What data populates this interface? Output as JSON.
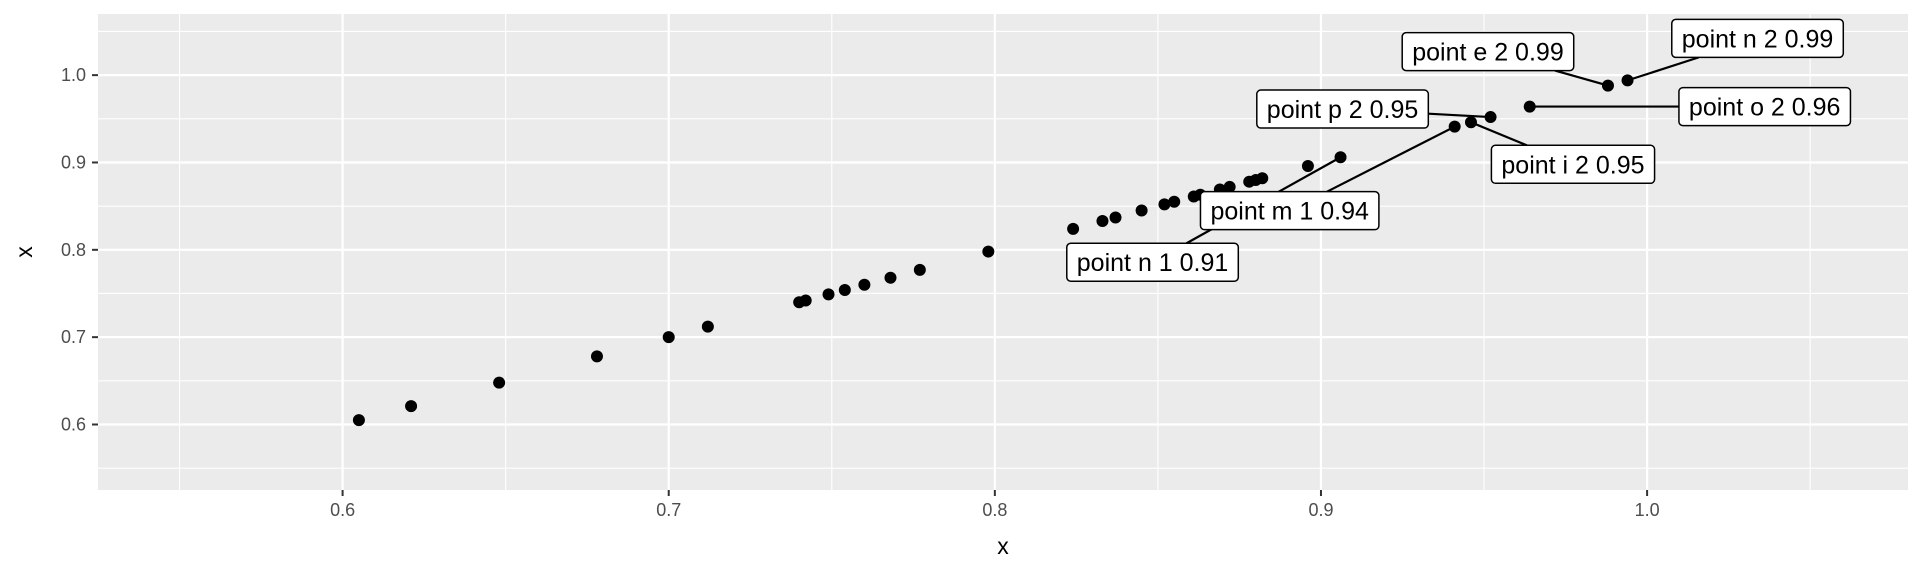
{
  "chart_data": {
    "type": "scatter",
    "title": "",
    "xlabel": "x",
    "ylabel": "x",
    "xlim": [
      0.525,
      1.08
    ],
    "ylim": [
      0.525,
      1.07
    ],
    "x_ticks": [
      0.6,
      0.7,
      0.8,
      0.9,
      1.0
    ],
    "x_tick_labels": [
      "0.6",
      "0.7",
      "0.8",
      "0.9",
      "1.0"
    ],
    "y_ticks": [
      0.6,
      0.7,
      0.8,
      0.9,
      1.0
    ],
    "y_tick_labels": [
      "0.6",
      "0.7",
      "0.8",
      "0.9",
      "1.0"
    ],
    "grid": true,
    "background_color": "#ebebeb",
    "grid_color": "#ffffff",
    "point_color": "#000000",
    "points": [
      {
        "x": 0.605,
        "y": 0.605
      },
      {
        "x": 0.621,
        "y": 0.621
      },
      {
        "x": 0.648,
        "y": 0.648
      },
      {
        "x": 0.678,
        "y": 0.678
      },
      {
        "x": 0.7,
        "y": 0.7
      },
      {
        "x": 0.712,
        "y": 0.712
      },
      {
        "x": 0.74,
        "y": 0.74
      },
      {
        "x": 0.742,
        "y": 0.742
      },
      {
        "x": 0.749,
        "y": 0.749
      },
      {
        "x": 0.754,
        "y": 0.754
      },
      {
        "x": 0.76,
        "y": 0.76
      },
      {
        "x": 0.768,
        "y": 0.768
      },
      {
        "x": 0.777,
        "y": 0.777
      },
      {
        "x": 0.798,
        "y": 0.798
      },
      {
        "x": 0.824,
        "y": 0.824
      },
      {
        "x": 0.833,
        "y": 0.833
      },
      {
        "x": 0.837,
        "y": 0.837
      },
      {
        "x": 0.845,
        "y": 0.845
      },
      {
        "x": 0.852,
        "y": 0.852
      },
      {
        "x": 0.855,
        "y": 0.855
      },
      {
        "x": 0.861,
        "y": 0.861
      },
      {
        "x": 0.863,
        "y": 0.863
      },
      {
        "x": 0.869,
        "y": 0.869
      },
      {
        "x": 0.872,
        "y": 0.872
      },
      {
        "x": 0.878,
        "y": 0.878
      },
      {
        "x": 0.88,
        "y": 0.88
      },
      {
        "x": 0.882,
        "y": 0.882
      },
      {
        "x": 0.896,
        "y": 0.896
      },
      {
        "x": 0.906,
        "y": 0.906
      },
      {
        "x": 0.941,
        "y": 0.941
      },
      {
        "x": 0.946,
        "y": 0.946
      },
      {
        "x": 0.952,
        "y": 0.952
      },
      {
        "x": 0.964,
        "y": 0.964
      },
      {
        "x": 0.988,
        "y": 0.988
      },
      {
        "x": 0.994,
        "y": 0.994
      }
    ],
    "annotations": [
      {
        "text": "point e 2 0.99",
        "x": 0.988,
        "y": 0.988,
        "label_position": "upper-left"
      },
      {
        "text": "point n 2 0.99",
        "x": 0.994,
        "y": 0.994,
        "label_position": "upper-right"
      },
      {
        "text": "point o 2 0.96",
        "x": 0.964,
        "y": 0.964,
        "label_position": "right"
      },
      {
        "text": "point p 2 0.95",
        "x": 0.952,
        "y": 0.952,
        "label_position": "left"
      },
      {
        "text": "point i 2 0.95",
        "x": 0.946,
        "y": 0.946,
        "label_position": "lower-right"
      },
      {
        "text": "point m 1 0.94",
        "x": 0.941,
        "y": 0.941,
        "label_position": "lower-left"
      },
      {
        "text": "point n 1 0.91",
        "x": 0.906,
        "y": 0.906,
        "label_position": "lower-left"
      }
    ]
  }
}
